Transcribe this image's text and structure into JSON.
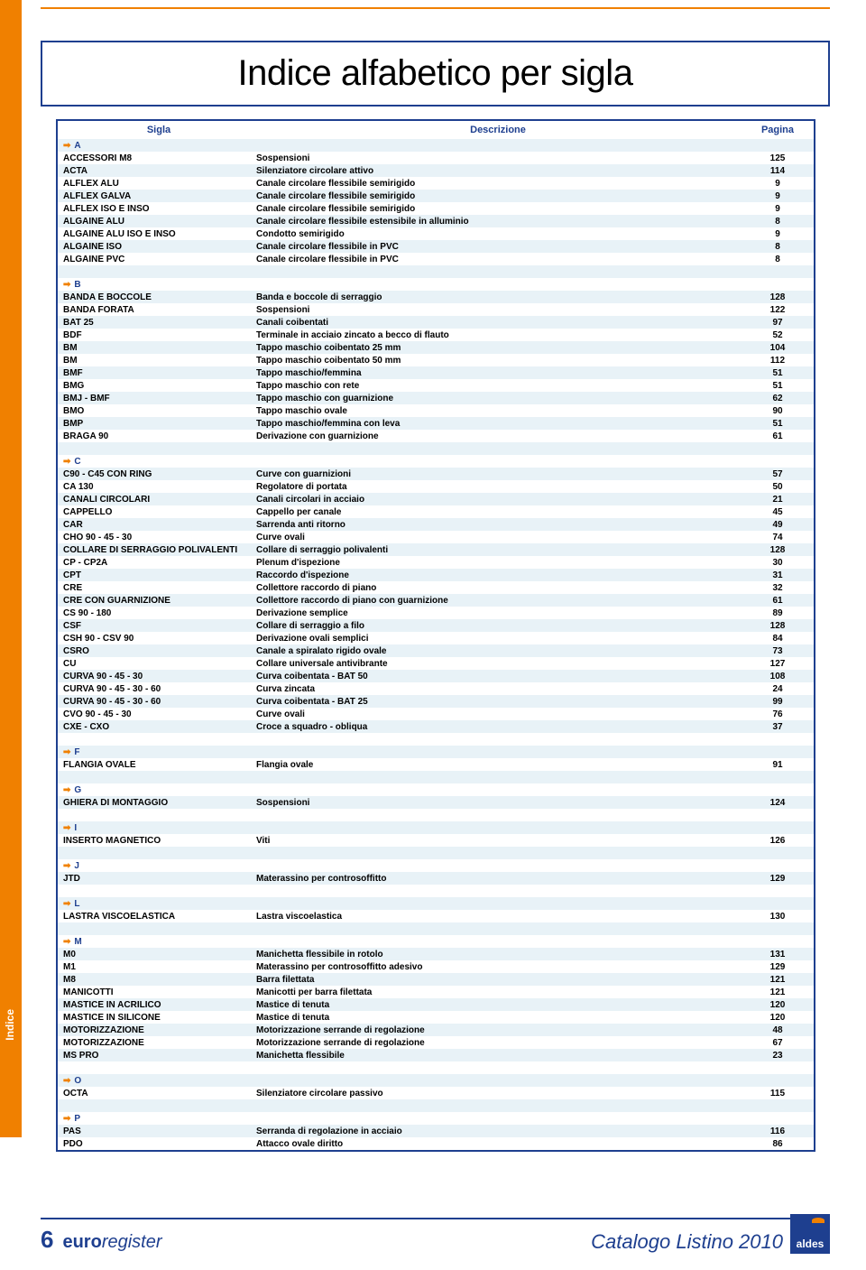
{
  "title": "Indice alfabetico per sigla",
  "columns": {
    "sigla": "Sigla",
    "descrizione": "Descrizione",
    "pagina": "Pagina"
  },
  "side_tab": "Indice",
  "page_number": "6",
  "brand_left": "euroregister",
  "footer_right": "Catalogo Listino 2010",
  "logo_text": "aldes",
  "colors": {
    "accent_orange": "#f08000",
    "accent_blue": "#1e3f8f",
    "row_even": "#e8f2f7",
    "row_odd": "#ffffff"
  },
  "rows": [
    {
      "type": "section",
      "letter": "A"
    },
    {
      "type": "data",
      "sigla": "ACCESSORI M8",
      "desc": "Sospensioni",
      "page": "125"
    },
    {
      "type": "data",
      "sigla": "ACTA",
      "desc": "Silenziatore circolare attivo",
      "page": "114"
    },
    {
      "type": "data",
      "sigla": "ALFLEX ALU",
      "desc": "Canale circolare flessibile semirigido",
      "page": "9"
    },
    {
      "type": "data",
      "sigla": "ALFLEX GALVA",
      "desc": "Canale circolare flessibile semirigido",
      "page": "9"
    },
    {
      "type": "data",
      "sigla": "ALFLEX ISO E INSO",
      "desc": "Canale circolare flessibile semirigido",
      "page": "9"
    },
    {
      "type": "data",
      "sigla": "ALGAINE ALU",
      "desc": "Canale circolare flessibile estensibile in alluminio",
      "page": "8"
    },
    {
      "type": "data",
      "sigla": "ALGAINE ALU  ISO E INSO",
      "desc": "Condotto semirigido",
      "page": "9"
    },
    {
      "type": "data",
      "sigla": "ALGAINE ISO",
      "desc": "Canale circolare flessibile in PVC",
      "page": "8"
    },
    {
      "type": "data",
      "sigla": "ALGAINE PVC",
      "desc": "Canale circolare flessibile in PVC",
      "page": "8"
    },
    {
      "type": "blank"
    },
    {
      "type": "section",
      "letter": "B"
    },
    {
      "type": "data",
      "sigla": "BANDA E BOCCOLE",
      "desc": "Banda e boccole di serraggio",
      "page": "128"
    },
    {
      "type": "data",
      "sigla": "BANDA FORATA",
      "desc": "Sospensioni",
      "page": "122"
    },
    {
      "type": "data",
      "sigla": "BAT 25",
      "desc": "Canali coibentati",
      "page": "97"
    },
    {
      "type": "data",
      "sigla": "BDF",
      "desc": "Terminale in acciaio zincato a becco di flauto",
      "page": "52"
    },
    {
      "type": "data",
      "sigla": "BM",
      "desc": "Tappo maschio coibentato 25 mm",
      "page": "104"
    },
    {
      "type": "data",
      "sigla": "BM",
      "desc": "Tappo maschio coibentato 50 mm",
      "page": "112"
    },
    {
      "type": "data",
      "sigla": "BMF",
      "desc": "Tappo maschio/femmina",
      "page": "51"
    },
    {
      "type": "data",
      "sigla": "BMG",
      "desc": "Tappo maschio con rete",
      "page": "51"
    },
    {
      "type": "data",
      "sigla": "BMJ - BMF",
      "desc": "Tappo maschio con guarnizione",
      "page": "62"
    },
    {
      "type": "data",
      "sigla": "BMO",
      "desc": "Tappo maschio ovale",
      "page": "90"
    },
    {
      "type": "data",
      "sigla": "BMP",
      "desc": "Tappo maschio/femmina con leva",
      "page": "51"
    },
    {
      "type": "data",
      "sigla": "BRAGA 90",
      "desc": "Derivazione con guarnizione",
      "page": "61"
    },
    {
      "type": "blank"
    },
    {
      "type": "section",
      "letter": "C"
    },
    {
      "type": "data",
      "sigla": "C90 - C45 CON RING",
      "desc": "Curve con guarnizioni",
      "page": "57"
    },
    {
      "type": "data",
      "sigla": "CA 130",
      "desc": "Regolatore di portata",
      "page": "50"
    },
    {
      "type": "data",
      "sigla": "CANALI CIRCOLARI",
      "desc": "Canali circolari in acciaio",
      "page": "21"
    },
    {
      "type": "data",
      "sigla": "CAPPELLO",
      "desc": "Cappello per canale",
      "page": "45"
    },
    {
      "type": "data",
      "sigla": "CAR",
      "desc": "Sarrenda anti ritorno",
      "page": "49"
    },
    {
      "type": "data",
      "sigla": "CHO 90 - 45 - 30",
      "desc": "Curve ovali",
      "page": "74"
    },
    {
      "type": "data",
      "sigla": "COLLARE DI SERRAGGIO POLIVALENTI",
      "desc": "Collare di serraggio polivalenti",
      "page": "128"
    },
    {
      "type": "data",
      "sigla": "CP - CP2A",
      "desc": "Plenum d'ispezione",
      "page": "30"
    },
    {
      "type": "data",
      "sigla": "CPT",
      "desc": "Raccordo d'ispezione",
      "page": "31"
    },
    {
      "type": "data",
      "sigla": "CRE",
      "desc": "Collettore raccordo di piano",
      "page": "32"
    },
    {
      "type": "data",
      "sigla": "CRE CON GUARNIZIONE",
      "desc": "Collettore raccordo di piano con guarnizione",
      "page": "61"
    },
    {
      "type": "data",
      "sigla": "CS 90 - 180",
      "desc": "Derivazione semplice",
      "page": "89"
    },
    {
      "type": "data",
      "sigla": "CSF",
      "desc": "Collare di serraggio a filo",
      "page": "128"
    },
    {
      "type": "data",
      "sigla": "CSH 90 - CSV 90",
      "desc": "Derivazione ovali semplici",
      "page": "84"
    },
    {
      "type": "data",
      "sigla": "CSRO",
      "desc": "Canale a spiralato rigido ovale",
      "page": "73"
    },
    {
      "type": "data",
      "sigla": "CU",
      "desc": "Collare universale antivibrante",
      "page": "127"
    },
    {
      "type": "data",
      "sigla": "CURVA 90 - 45 - 30",
      "desc": "Curva coibentata - BAT 50",
      "page": "108"
    },
    {
      "type": "data",
      "sigla": "CURVA 90 - 45 - 30 - 60",
      "desc": "Curva zincata",
      "page": "24"
    },
    {
      "type": "data",
      "sigla": "CURVA 90 - 45 - 30 - 60",
      "desc": "Curva coibentata - BAT 25",
      "page": "99"
    },
    {
      "type": "data",
      "sigla": "CVO 90 - 45 - 30",
      "desc": "Curve ovali",
      "page": "76"
    },
    {
      "type": "data",
      "sigla": "CXE - CXO",
      "desc": "Croce a squadro - obliqua",
      "page": "37"
    },
    {
      "type": "blank"
    },
    {
      "type": "section",
      "letter": "F"
    },
    {
      "type": "data",
      "sigla": "FLANGIA OVALE",
      "desc": "Flangia ovale",
      "page": "91"
    },
    {
      "type": "blank"
    },
    {
      "type": "section",
      "letter": "G"
    },
    {
      "type": "data",
      "sigla": "GHIERA DI MONTAGGIO",
      "desc": "Sospensioni",
      "page": "124"
    },
    {
      "type": "blank"
    },
    {
      "type": "section",
      "letter": "I"
    },
    {
      "type": "data",
      "sigla": "INSERTO MAGNETICO",
      "desc": "Viti",
      "page": "126"
    },
    {
      "type": "blank"
    },
    {
      "type": "section",
      "letter": "J"
    },
    {
      "type": "data",
      "sigla": "JTD",
      "desc": "Materassino per controsoffitto",
      "page": "129"
    },
    {
      "type": "blank"
    },
    {
      "type": "section",
      "letter": "L"
    },
    {
      "type": "data",
      "sigla": "LASTRA VISCOELASTICA",
      "desc": "Lastra viscoelastica",
      "page": "130"
    },
    {
      "type": "blank"
    },
    {
      "type": "section",
      "letter": "M"
    },
    {
      "type": "data",
      "sigla": "M0",
      "desc": "Manichetta flessibile in rotolo",
      "page": "131"
    },
    {
      "type": "data",
      "sigla": "M1",
      "desc": "Materassino per controsoffitto adesivo",
      "page": "129"
    },
    {
      "type": "data",
      "sigla": "M8",
      "desc": "Barra filettata",
      "page": "121"
    },
    {
      "type": "data",
      "sigla": "MANICOTTI",
      "desc": "Manicotti per barra filettata",
      "page": "121"
    },
    {
      "type": "data",
      "sigla": "MASTICE IN ACRILICO",
      "desc": "Mastice di tenuta",
      "page": "120"
    },
    {
      "type": "data",
      "sigla": "MASTICE IN SILICONE",
      "desc": "Mastice di tenuta",
      "page": "120"
    },
    {
      "type": "data",
      "sigla": "MOTORIZZAZIONE",
      "desc": "Motorizzazione serrande di regolazione",
      "page": "48"
    },
    {
      "type": "data",
      "sigla": "MOTORIZZAZIONE",
      "desc": "Motorizzazione serrande di regolazione",
      "page": "67"
    },
    {
      "type": "data",
      "sigla": "MS PRO",
      "desc": "Manichetta flessibile",
      "page": "23"
    },
    {
      "type": "blank"
    },
    {
      "type": "section",
      "letter": "O"
    },
    {
      "type": "data",
      "sigla": "OCTA",
      "desc": "Silenziatore circolare passivo",
      "page": "115"
    },
    {
      "type": "blank"
    },
    {
      "type": "section",
      "letter": "P"
    },
    {
      "type": "data",
      "sigla": "PAS",
      "desc": "Serranda di regolazione in acciaio",
      "page": "116"
    },
    {
      "type": "data",
      "sigla": "PDO",
      "desc": "Attacco ovale diritto",
      "page": "86"
    }
  ]
}
